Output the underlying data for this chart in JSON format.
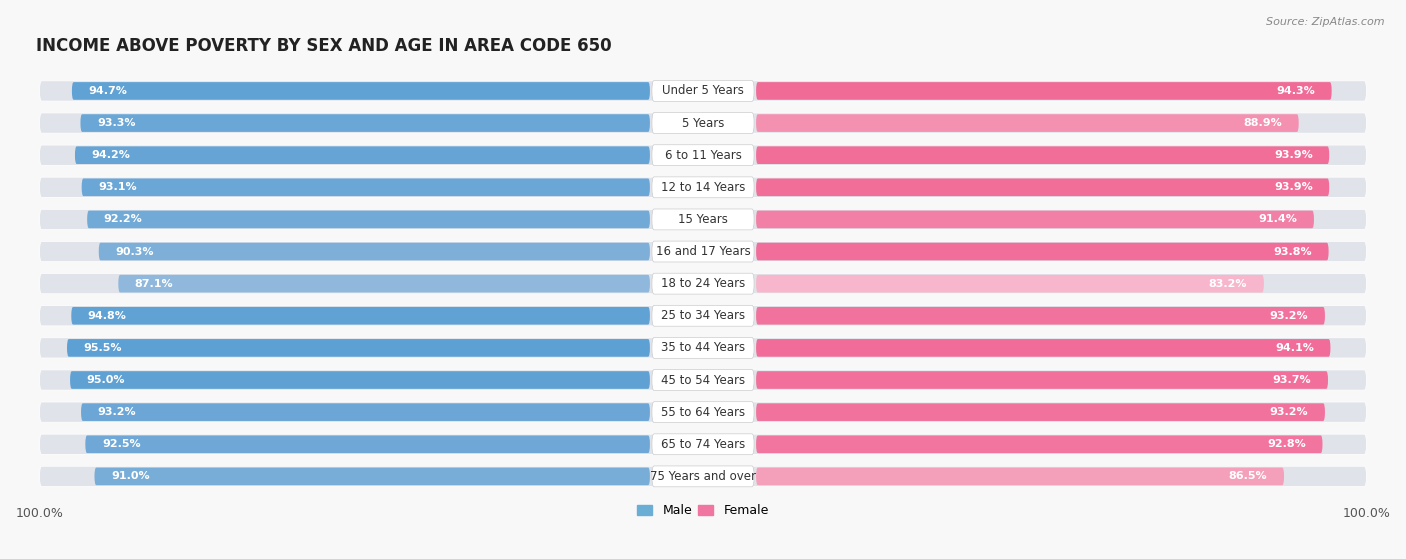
{
  "title": "INCOME ABOVE POVERTY BY SEX AND AGE IN AREA CODE 650",
  "source": "Source: ZipAtlas.com",
  "categories": [
    "Under 5 Years",
    "5 Years",
    "6 to 11 Years",
    "12 to 14 Years",
    "15 Years",
    "16 and 17 Years",
    "18 to 24 Years",
    "25 to 34 Years",
    "35 to 44 Years",
    "45 to 54 Years",
    "55 to 64 Years",
    "65 to 74 Years",
    "75 Years and over"
  ],
  "male_values": [
    94.7,
    93.3,
    94.2,
    93.1,
    92.2,
    90.3,
    87.1,
    94.8,
    95.5,
    95.0,
    93.2,
    92.5,
    91.0
  ],
  "female_values": [
    94.3,
    88.9,
    93.9,
    93.9,
    91.4,
    93.8,
    83.2,
    93.2,
    94.1,
    93.7,
    93.2,
    92.8,
    86.5
  ],
  "male_bar_color": "#6aaed6",
  "female_bar_color": "#f075a0",
  "male_light_color": "#b8d4ed",
  "female_light_color": "#f8c0d4",
  "track_color": "#e0e4ea",
  "background_color": "#f8f8f8",
  "label_bg_color": "#ffffff",
  "title_fontsize": 12,
  "label_fontsize": 8,
  "category_fontsize": 8.5,
  "max_val": 100.0
}
